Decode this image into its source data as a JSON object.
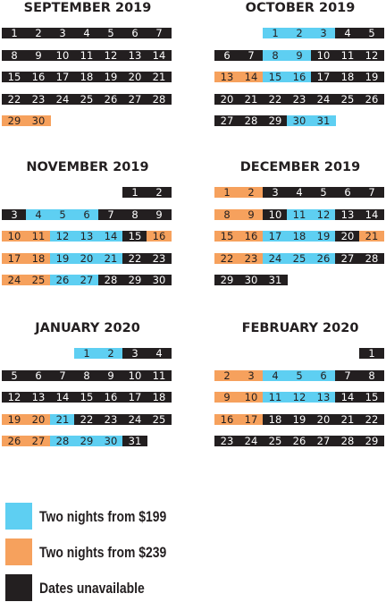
{
  "colors": {
    "unavailable": "#231f20",
    "from_199": "#5ecff2",
    "from_239": "#f6a15d"
  },
  "months": [
    {
      "title": "SEPTEMBER 2019",
      "weeks": [
        [
          {
            "d": "1",
            "s": "u"
          },
          {
            "d": "2",
            "s": "u"
          },
          {
            "d": "3",
            "s": "u"
          },
          {
            "d": "4",
            "s": "u"
          },
          {
            "d": "5",
            "s": "u"
          },
          {
            "d": "6",
            "s": "u"
          },
          {
            "d": "7",
            "s": "u"
          }
        ],
        [
          {
            "d": "8",
            "s": "u"
          },
          {
            "d": "9",
            "s": "u"
          },
          {
            "d": "10",
            "s": "u"
          },
          {
            "d": "11",
            "s": "u"
          },
          {
            "d": "12",
            "s": "u"
          },
          {
            "d": "13",
            "s": "u"
          },
          {
            "d": "14",
            "s": "u"
          }
        ],
        [
          {
            "d": "15",
            "s": "u"
          },
          {
            "d": "16",
            "s": "u"
          },
          {
            "d": "17",
            "s": "u"
          },
          {
            "d": "18",
            "s": "u"
          },
          {
            "d": "19",
            "s": "u"
          },
          {
            "d": "20",
            "s": "u"
          },
          {
            "d": "21",
            "s": "u"
          }
        ],
        [
          {
            "d": "22",
            "s": "u"
          },
          {
            "d": "23",
            "s": "u"
          },
          {
            "d": "24",
            "s": "u"
          },
          {
            "d": "25",
            "s": "u"
          },
          {
            "d": "26",
            "s": "u"
          },
          {
            "d": "27",
            "s": "u"
          },
          {
            "d": "28",
            "s": "u"
          }
        ],
        [
          {
            "d": "29",
            "s": "o"
          },
          {
            "d": "30",
            "s": "o"
          },
          null,
          null,
          null,
          null,
          null
        ]
      ]
    },
    {
      "title": "OCTOBER 2019",
      "weeks": [
        [
          null,
          null,
          {
            "d": "1",
            "s": "b"
          },
          {
            "d": "2",
            "s": "b"
          },
          {
            "d": "3",
            "s": "b"
          },
          {
            "d": "4",
            "s": "u"
          },
          {
            "d": "5",
            "s": "u"
          }
        ],
        [
          {
            "d": "6",
            "s": "u"
          },
          {
            "d": "7",
            "s": "u"
          },
          {
            "d": "8",
            "s": "b"
          },
          {
            "d": "9",
            "s": "b"
          },
          {
            "d": "10",
            "s": "u"
          },
          {
            "d": "11",
            "s": "u"
          },
          {
            "d": "12",
            "s": "u"
          }
        ],
        [
          {
            "d": "13",
            "s": "o"
          },
          {
            "d": "14",
            "s": "o"
          },
          {
            "d": "15",
            "s": "b"
          },
          {
            "d": "16",
            "s": "b"
          },
          {
            "d": "17",
            "s": "u"
          },
          {
            "d": "18",
            "s": "u"
          },
          {
            "d": "19",
            "s": "u"
          }
        ],
        [
          {
            "d": "20",
            "s": "u"
          },
          {
            "d": "21",
            "s": "u"
          },
          {
            "d": "22",
            "s": "u"
          },
          {
            "d": "23",
            "s": "u"
          },
          {
            "d": "24",
            "s": "u"
          },
          {
            "d": "25",
            "s": "u"
          },
          {
            "d": "26",
            "s": "u"
          }
        ],
        [
          {
            "d": "27",
            "s": "u"
          },
          {
            "d": "28",
            "s": "u"
          },
          {
            "d": "29",
            "s": "u"
          },
          {
            "d": "30",
            "s": "b"
          },
          {
            "d": "31",
            "s": "b"
          },
          null,
          null
        ]
      ]
    },
    {
      "title": "NOVEMBER 2019",
      "weeks": [
        [
          null,
          null,
          null,
          null,
          null,
          {
            "d": "1",
            "s": "u"
          },
          {
            "d": "2",
            "s": "u"
          }
        ],
        [
          {
            "d": "3",
            "s": "u"
          },
          {
            "d": "4",
            "s": "b"
          },
          {
            "d": "5",
            "s": "b"
          },
          {
            "d": "6",
            "s": "b"
          },
          {
            "d": "7",
            "s": "u"
          },
          {
            "d": "8",
            "s": "u"
          },
          {
            "d": "9",
            "s": "u"
          }
        ],
        [
          {
            "d": "10",
            "s": "o"
          },
          {
            "d": "11",
            "s": "o"
          },
          {
            "d": "12",
            "s": "b"
          },
          {
            "d": "13",
            "s": "b"
          },
          {
            "d": "14",
            "s": "b"
          },
          {
            "d": "15",
            "s": "u"
          },
          {
            "d": "16",
            "s": "o"
          }
        ],
        [
          {
            "d": "17",
            "s": "o"
          },
          {
            "d": "18",
            "s": "o"
          },
          {
            "d": "19",
            "s": "b"
          },
          {
            "d": "20",
            "s": "b"
          },
          {
            "d": "21",
            "s": "b"
          },
          {
            "d": "22",
            "s": "u"
          },
          {
            "d": "23",
            "s": "u"
          }
        ],
        [
          {
            "d": "24",
            "s": "o"
          },
          {
            "d": "25",
            "s": "o"
          },
          {
            "d": "26",
            "s": "b"
          },
          {
            "d": "27",
            "s": "b"
          },
          {
            "d": "28",
            "s": "u"
          },
          {
            "d": "29",
            "s": "u"
          },
          {
            "d": "30",
            "s": "u"
          }
        ]
      ]
    },
    {
      "title": "DECEMBER 2019",
      "weeks": [
        [
          {
            "d": "1",
            "s": "o"
          },
          {
            "d": "2",
            "s": "o"
          },
          {
            "d": "3",
            "s": "u"
          },
          {
            "d": "4",
            "s": "u"
          },
          {
            "d": "5",
            "s": "u"
          },
          {
            "d": "6",
            "s": "u"
          },
          {
            "d": "7",
            "s": "u"
          }
        ],
        [
          {
            "d": "8",
            "s": "o"
          },
          {
            "d": "9",
            "s": "o"
          },
          {
            "d": "10",
            "s": "u"
          },
          {
            "d": "11",
            "s": "b"
          },
          {
            "d": "12",
            "s": "b"
          },
          {
            "d": "13",
            "s": "u"
          },
          {
            "d": "14",
            "s": "u"
          }
        ],
        [
          {
            "d": "15",
            "s": "o"
          },
          {
            "d": "16",
            "s": "o"
          },
          {
            "d": "17",
            "s": "b"
          },
          {
            "d": "18",
            "s": "b"
          },
          {
            "d": "19",
            "s": "b"
          },
          {
            "d": "20",
            "s": "u"
          },
          {
            "d": "21",
            "s": "o"
          }
        ],
        [
          {
            "d": "22",
            "s": "o"
          },
          {
            "d": "23",
            "s": "o"
          },
          {
            "d": "24",
            "s": "b"
          },
          {
            "d": "25",
            "s": "b"
          },
          {
            "d": "26",
            "s": "b"
          },
          {
            "d": "27",
            "s": "u"
          },
          {
            "d": "28",
            "s": "u"
          }
        ],
        [
          {
            "d": "29",
            "s": "u"
          },
          {
            "d": "30",
            "s": "u"
          },
          {
            "d": "31",
            "s": "u"
          },
          null,
          null,
          null,
          null
        ]
      ]
    },
    {
      "title": "JANUARY 2020",
      "weeks": [
        [
          null,
          null,
          null,
          {
            "d": "1",
            "s": "b"
          },
          {
            "d": "2",
            "s": "b"
          },
          {
            "d": "3",
            "s": "u"
          },
          {
            "d": "4",
            "s": "u"
          }
        ],
        [
          {
            "d": "5",
            "s": "u"
          },
          {
            "d": "6",
            "s": "u"
          },
          {
            "d": "7",
            "s": "u"
          },
          {
            "d": "8",
            "s": "u"
          },
          {
            "d": "9",
            "s": "u"
          },
          {
            "d": "10",
            "s": "u"
          },
          {
            "d": "11",
            "s": "u"
          }
        ],
        [
          {
            "d": "12",
            "s": "u"
          },
          {
            "d": "13",
            "s": "u"
          },
          {
            "d": "14",
            "s": "u"
          },
          {
            "d": "15",
            "s": "u"
          },
          {
            "d": "16",
            "s": "u"
          },
          {
            "d": "17",
            "s": "u"
          },
          {
            "d": "18",
            "s": "u"
          }
        ],
        [
          {
            "d": "19",
            "s": "o"
          },
          {
            "d": "20",
            "s": "o"
          },
          {
            "d": "21",
            "s": "b"
          },
          {
            "d": "22",
            "s": "u"
          },
          {
            "d": "23",
            "s": "u"
          },
          {
            "d": "24",
            "s": "u"
          },
          {
            "d": "25",
            "s": "u"
          }
        ],
        [
          {
            "d": "26",
            "s": "o"
          },
          {
            "d": "27",
            "s": "o"
          },
          {
            "d": "28",
            "s": "b"
          },
          {
            "d": "29",
            "s": "b"
          },
          {
            "d": "30",
            "s": "b"
          },
          {
            "d": "31",
            "s": "u"
          },
          null
        ]
      ]
    },
    {
      "title": "FEBRUARY 2020",
      "weeks": [
        [
          null,
          null,
          null,
          null,
          null,
          null,
          {
            "d": "1",
            "s": "u"
          }
        ],
        [
          {
            "d": "2",
            "s": "o"
          },
          {
            "d": "3",
            "s": "o"
          },
          {
            "d": "4",
            "s": "b"
          },
          {
            "d": "5",
            "s": "b"
          },
          {
            "d": "6",
            "s": "b"
          },
          {
            "d": "7",
            "s": "u"
          },
          {
            "d": "8",
            "s": "u"
          }
        ],
        [
          {
            "d": "9",
            "s": "o"
          },
          {
            "d": "10",
            "s": "o"
          },
          {
            "d": "11",
            "s": "b"
          },
          {
            "d": "12",
            "s": "b"
          },
          {
            "d": "13",
            "s": "b"
          },
          {
            "d": "14",
            "s": "u"
          },
          {
            "d": "15",
            "s": "u"
          }
        ],
        [
          {
            "d": "16",
            "s": "o"
          },
          {
            "d": "17",
            "s": "o"
          },
          {
            "d": "18",
            "s": "u"
          },
          {
            "d": "19",
            "s": "u"
          },
          {
            "d": "20",
            "s": "u"
          },
          {
            "d": "21",
            "s": "u"
          },
          {
            "d": "22",
            "s": "u"
          }
        ],
        [
          {
            "d": "23",
            "s": "u"
          },
          {
            "d": "24",
            "s": "u"
          },
          {
            "d": "25",
            "s": "u"
          },
          {
            "d": "26",
            "s": "u"
          },
          {
            "d": "27",
            "s": "u"
          },
          {
            "d": "28",
            "s": "u"
          },
          {
            "d": "29",
            "s": "u"
          }
        ]
      ]
    }
  ],
  "legend": [
    {
      "label": "Two nights from $199",
      "color": "#5ecff2"
    },
    {
      "label": "Two nights from $239",
      "color": "#f6a15d"
    },
    {
      "label": "Dates unavailable",
      "color": "#231f20"
    }
  ]
}
